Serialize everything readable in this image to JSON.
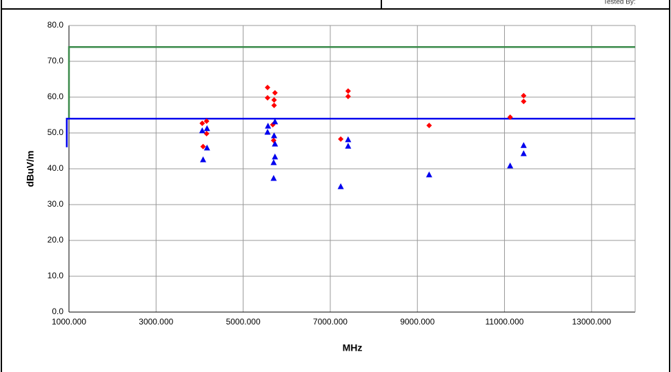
{
  "header": {
    "tested_by": "Tested By:"
  },
  "chart_data": {
    "type": "scatter",
    "x_label": "MHz",
    "y_label": "dBuV/m",
    "xlim": [
      1000,
      14000
    ],
    "ylim": [
      0,
      80
    ],
    "xticks": [
      {
        "value": 1000,
        "label": "1000.000"
      },
      {
        "value": 3000,
        "label": "3000.000"
      },
      {
        "value": 5000,
        "label": "5000.000"
      },
      {
        "value": 7000,
        "label": "7000.000"
      },
      {
        "value": 9000,
        "label": "9000.000"
      },
      {
        "value": 11000,
        "label": "11000.000"
      },
      {
        "value": 13000,
        "label": "13000.000"
      }
    ],
    "yticks": [
      {
        "value": 0,
        "label": "0.0"
      },
      {
        "value": 10,
        "label": "10.0"
      },
      {
        "value": 20,
        "label": "20.0"
      },
      {
        "value": 30,
        "label": "30.0"
      },
      {
        "value": 40,
        "label": "40.0"
      },
      {
        "value": 50,
        "label": "50.0"
      },
      {
        "value": 60,
        "label": "60.0"
      },
      {
        "value": 70,
        "label": "70.0"
      },
      {
        "value": 80,
        "label": "80.0"
      }
    ],
    "grid": true,
    "series": [
      {
        "style": "line",
        "color": "#3a8a4a",
        "x": [
          1000,
          1000,
          14000
        ],
        "values": [
          54,
          74,
          74
        ]
      },
      {
        "style": "line",
        "color": "#0000ee",
        "x": [
          950,
          950,
          14000
        ],
        "values": [
          46,
          54,
          54
        ]
      },
      {
        "style": "marker",
        "marker": "diamond",
        "color": "#ff0000",
        "x": [
          4060,
          4160,
          4160,
          4080,
          5560,
          5560,
          5730,
          5710,
          5710,
          5680,
          5700,
          7240,
          7410,
          7410,
          9270,
          11130,
          11440,
          11440
        ],
        "values": [
          52.7,
          53.3,
          49.8,
          46.2,
          62.7,
          59.8,
          61.2,
          59.2,
          57.7,
          52.3,
          47.9,
          48.3,
          61.7,
          60.2,
          52.1,
          54.4,
          60.4,
          58.8
        ]
      },
      {
        "style": "marker",
        "marker": "triangle",
        "color": "#0000ee",
        "x": [
          4060,
          4170,
          4170,
          4080,
          5570,
          5560,
          5730,
          5710,
          5730,
          5730,
          5700,
          5700,
          7240,
          7410,
          7410,
          9270,
          11130,
          11440,
          11440
        ],
        "values": [
          50.6,
          51.2,
          45.8,
          42.5,
          51.9,
          50.2,
          53.1,
          49.2,
          46.9,
          43.3,
          41.7,
          37.3,
          35.0,
          48.1,
          46.3,
          38.3,
          40.8,
          46.5,
          44.2
        ]
      }
    ]
  }
}
